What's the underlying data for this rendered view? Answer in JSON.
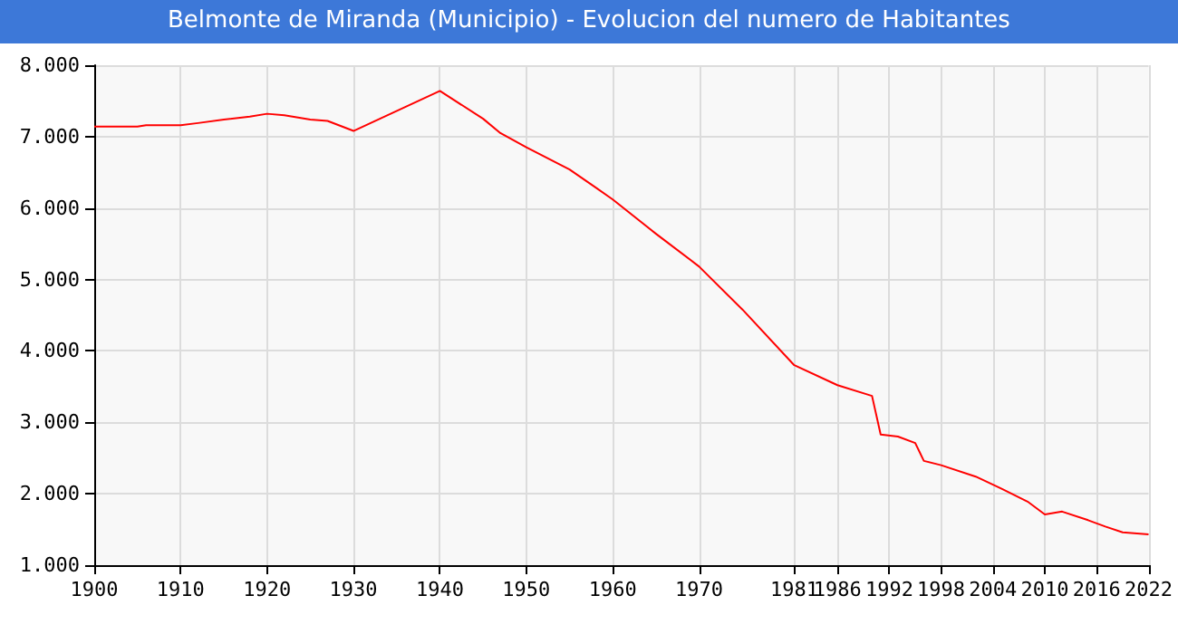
{
  "chart_data": {
    "type": "line",
    "title": "Belmonte de Miranda (Municipio) - Evolucion del numero de Habitantes",
    "series": [
      {
        "color": "#ff0000",
        "x": [
          1900,
          1905,
          1906,
          1910,
          1912,
          1915,
          1918,
          1920,
          1922,
          1925,
          1927,
          1930,
          1940,
          1945,
          1947,
          1950,
          1955,
          1958,
          1960,
          1965,
          1970,
          1975,
          1981,
          1986,
          1990,
          1991,
          1993,
          1995,
          1996,
          1998,
          2002,
          2005,
          2008,
          2010,
          2012,
          2015,
          2017,
          2019,
          2022
        ],
        "values": [
          7140,
          7140,
          7160,
          7160,
          7190,
          7240,
          7280,
          7320,
          7300,
          7240,
          7220,
          7080,
          7640,
          7250,
          7050,
          6850,
          6540,
          6290,
          6120,
          5640,
          5180,
          4580,
          3800,
          3520,
          3370,
          2830,
          2800,
          2710,
          2460,
          2400,
          2240,
          2070,
          1890,
          1710,
          1750,
          1630,
          1540,
          1460,
          1430
        ]
      }
    ],
    "xlim": [
      1900,
      2022
    ],
    "xticks": [
      1900,
      1910,
      1920,
      1930,
      1940,
      1950,
      1960,
      1970,
      1981,
      1986,
      1992,
      1998,
      2004,
      2010,
      2016,
      2022
    ],
    "ylim": [
      1000,
      8000
    ],
    "yticks": [
      {
        "value": 1000,
        "label": "1.000"
      },
      {
        "value": 2000,
        "label": "2.000"
      },
      {
        "value": 3000,
        "label": "3.000"
      },
      {
        "value": 4000,
        "label": "4.000"
      },
      {
        "value": 5000,
        "label": "5.000"
      },
      {
        "value": 6000,
        "label": "6.000"
      },
      {
        "value": 7000,
        "label": "7.000"
      },
      {
        "value": 8000,
        "label": "8.000"
      }
    ],
    "grid": true,
    "marker": "none",
    "line_style": "solid"
  }
}
